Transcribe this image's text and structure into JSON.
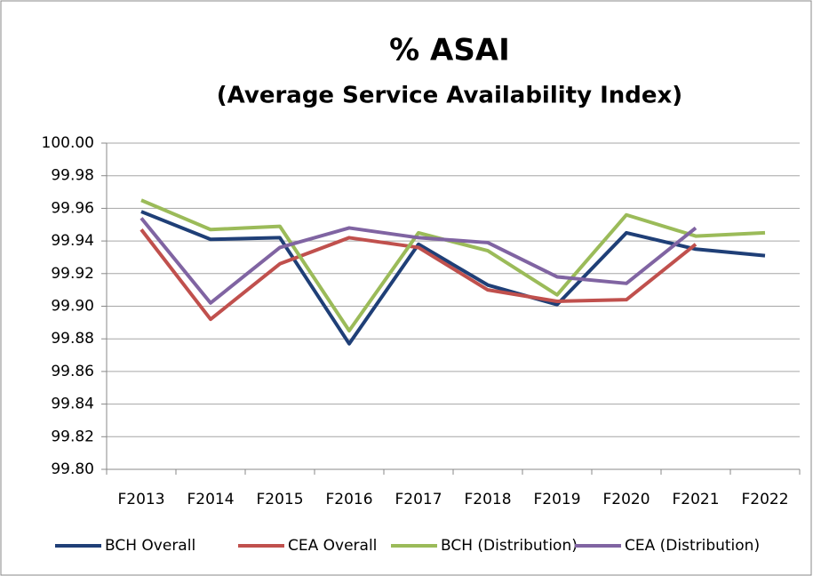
{
  "chart_data": {
    "type": "line",
    "title": "% ASAI",
    "subtitle": "(Average Service Availability Index)",
    "categories": [
      "F2013",
      "F2014",
      "F2015",
      "F2016",
      "F2017",
      "F2018",
      "F2019",
      "F2020",
      "F2021",
      "F2022"
    ],
    "series": [
      {
        "name": "BCH Overall",
        "color": "#1f3f77",
        "values": [
          99.958,
          99.941,
          99.942,
          99.877,
          99.938,
          99.913,
          99.901,
          99.945,
          99.935,
          99.931
        ]
      },
      {
        "name": "CEA Overall",
        "color": "#c0504d",
        "values": [
          99.947,
          99.892,
          99.926,
          99.942,
          99.936,
          99.91,
          99.903,
          99.904,
          99.938,
          null
        ]
      },
      {
        "name": "BCH (Distribution)",
        "color": "#9bbb59",
        "values": [
          99.965,
          99.947,
          99.949,
          99.885,
          99.945,
          99.934,
          99.907,
          99.956,
          99.943,
          99.945
        ]
      },
      {
        "name": "CEA (Distribution)",
        "color": "#8064a2",
        "values": [
          99.954,
          99.902,
          99.936,
          99.948,
          99.942,
          99.939,
          99.918,
          99.914,
          99.948,
          null
        ]
      }
    ],
    "ylim": [
      99.8,
      100
    ],
    "yticks": [
      {
        "value": 99.8,
        "label": "99.80"
      },
      99.82,
      99.84,
      99.86,
      99.88,
      {
        "value": 99.9,
        "label": "99.90"
      },
      99.92,
      99.94,
      99.96,
      99.98,
      {
        "value": 100,
        "label": "100.00"
      }
    ],
    "grid": true,
    "legend": "bottom"
  }
}
